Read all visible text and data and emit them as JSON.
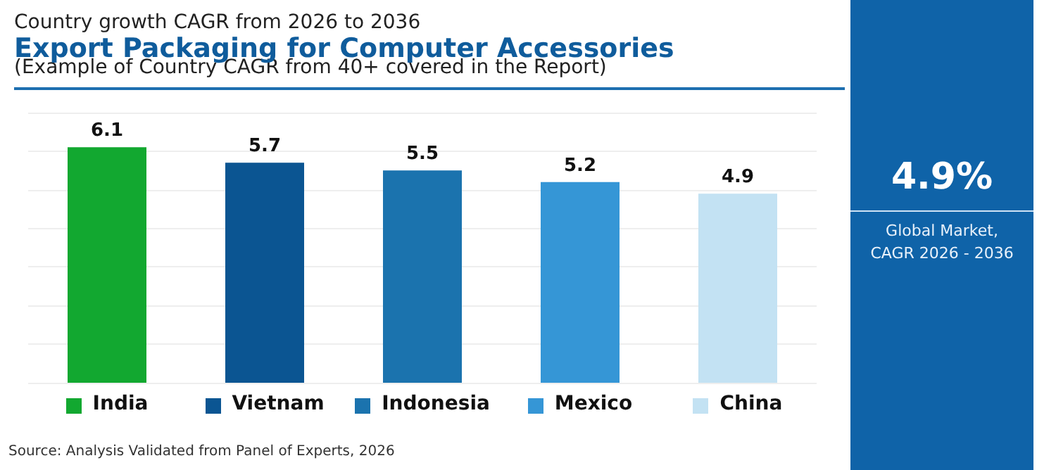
{
  "chart_data": {
    "type": "bar",
    "subtitle": "Country growth CAGR from 2026 to 2036",
    "title": "Export Packaging for Computer Accessories",
    "annotations": [
      "(Example of Country CAGR from 40+ covered in the Report)",
      "4.9%",
      "Global Market,\nCAGR 2026 - 2036",
      "Source: Analysis Validated from Panel of Experts, 2026"
    ],
    "categories": [
      "India",
      "Vietnam",
      "Indonesia",
      "Mexico",
      "China"
    ],
    "values": [
      6.1,
      5.7,
      5.5,
      5.2,
      4.9
    ],
    "colors": [
      "#12a830",
      "#0b5592",
      "#1b73ae",
      "#3596d6",
      "#c3e2f3"
    ],
    "ylim": [
      0,
      7
    ],
    "yticks": [
      {
        "value": 0,
        "label": null
      },
      {
        "value": 1,
        "label": null
      },
      {
        "value": 2,
        "label": null
      },
      {
        "value": 3,
        "label": null
      },
      {
        "value": 4,
        "label": null
      },
      {
        "value": 5,
        "label": null
      },
      {
        "value": 6,
        "label": null
      },
      {
        "value": 7,
        "label": null
      }
    ],
    "tick_labels": "x",
    "grid": "y",
    "data_labels": true
  }
}
